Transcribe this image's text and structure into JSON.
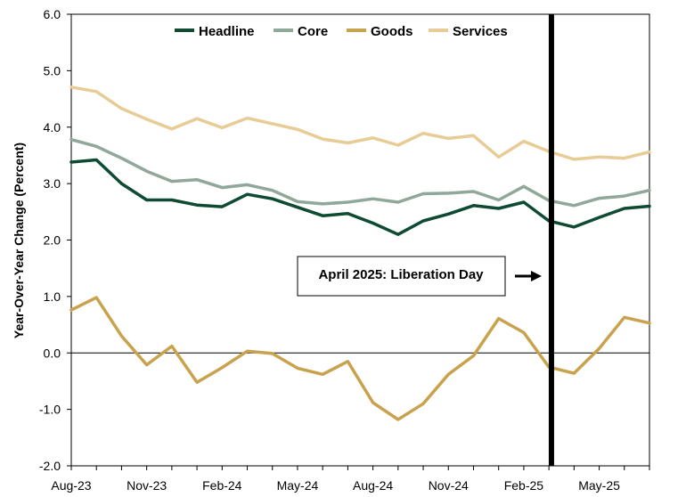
{
  "chart_data": {
    "type": "line",
    "ylabel": "Year-Over-Year Change (Percent)",
    "ylim": [
      -2.0,
      6.0
    ],
    "y_ticks": [
      "-2.0",
      "-1.0",
      "0.0",
      "1.0",
      "2.0",
      "3.0",
      "4.0",
      "5.0",
      "6.0"
    ],
    "x": [
      "Aug-23",
      "Sep-23",
      "Oct-23",
      "Nov-23",
      "Dec-23",
      "Jan-24",
      "Feb-24",
      "Mar-24",
      "Apr-24",
      "May-24",
      "Jun-24",
      "Jul-24",
      "Aug-24",
      "Sep-24",
      "Oct-24",
      "Nov-24",
      "Dec-24",
      "Jan-25",
      "Feb-25",
      "Mar-25",
      "Apr-25",
      "May-25",
      "Jun-25",
      "Jul-25"
    ],
    "x_tick_labels": [
      "Aug-23",
      "Nov-23",
      "Feb-24",
      "May-24",
      "Aug-24",
      "Nov-24",
      "Feb-25",
      "May-25"
    ],
    "legend_position": "top",
    "series": [
      {
        "name": "Headline",
        "color": "#0f4a33",
        "values": [
          3.38,
          3.42,
          3.0,
          2.71,
          2.71,
          2.62,
          2.59,
          2.81,
          2.73,
          2.58,
          2.43,
          2.47,
          2.3,
          2.1,
          2.34,
          2.46,
          2.61,
          2.56,
          2.67,
          2.34,
          2.23,
          2.4,
          2.56,
          2.6
        ]
      },
      {
        "name": "Core",
        "color": "#8fa89a",
        "values": [
          3.78,
          3.66,
          3.45,
          3.22,
          3.04,
          3.07,
          2.93,
          2.98,
          2.88,
          2.68,
          2.64,
          2.67,
          2.73,
          2.67,
          2.82,
          2.83,
          2.86,
          2.71,
          2.95,
          2.7,
          2.61,
          2.74,
          2.78,
          2.88
        ]
      },
      {
        "name": "Goods",
        "color": "#c9a24e",
        "values": [
          0.76,
          0.98,
          0.3,
          -0.21,
          0.12,
          -0.52,
          -0.26,
          0.03,
          -0.01,
          -0.27,
          -0.38,
          -0.15,
          -0.88,
          -1.18,
          -0.9,
          -0.38,
          -0.05,
          0.61,
          0.36,
          -0.25,
          -0.36,
          0.08,
          0.63,
          0.53
        ]
      },
      {
        "name": "Services",
        "color": "#e8cc96",
        "values": [
          4.71,
          4.63,
          4.33,
          4.14,
          3.97,
          4.15,
          3.99,
          4.16,
          4.06,
          3.96,
          3.79,
          3.72,
          3.81,
          3.68,
          3.89,
          3.8,
          3.85,
          3.47,
          3.75,
          3.57,
          3.43,
          3.47,
          3.45,
          3.56
        ]
      }
    ],
    "vline": {
      "x": "Mar-25",
      "offset": 0.1
    },
    "annotation": {
      "text": "April 2025: Liberation Day"
    }
  }
}
